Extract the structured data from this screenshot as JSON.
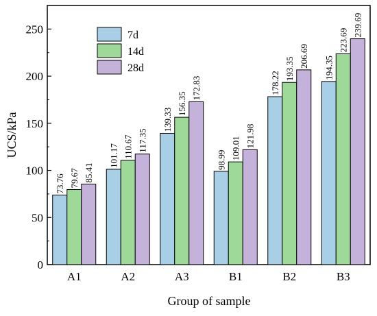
{
  "chart_data": {
    "type": "bar",
    "title": "",
    "xlabel": "Group of sample",
    "ylabel": "UCS/kPa",
    "categories": [
      "A1",
      "A2",
      "A3",
      "B1",
      "B2",
      "B3"
    ],
    "ylim": [
      0,
      275
    ],
    "yticks": [
      0,
      50,
      100,
      150,
      200,
      250
    ],
    "grid": false,
    "legend_position": "top-left",
    "series": [
      {
        "name": "7d",
        "color": "#a9cfe6",
        "values": [
          73.76,
          101.17,
          139.33,
          98.99,
          178.22,
          194.35
        ],
        "labels": [
          "73.76",
          "101.17",
          "139.33",
          "98.99",
          "178.22",
          "194.35"
        ]
      },
      {
        "name": "14d",
        "color": "#9fd99a",
        "values": [
          79.67,
          110.67,
          156.35,
          109.01,
          193.35,
          223.69
        ],
        "labels": [
          "79.67",
          "110.67",
          "156.35",
          "109.01",
          "193.35",
          "223.69"
        ]
      },
      {
        "name": "28d",
        "color": "#c5b2da",
        "values": [
          85.41,
          117.35,
          172.83,
          121.98,
          206.69,
          239.69
        ],
        "labels": [
          "85.41",
          "117.35",
          "172.83",
          "121.98",
          "206.69",
          "239.69"
        ]
      }
    ]
  }
}
